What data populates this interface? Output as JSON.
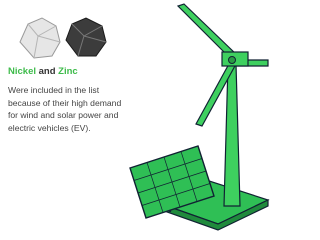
{
  "heading": {
    "parts": [
      "Nickel",
      "and",
      "Zinc"
    ]
  },
  "body": [
    "Were included in the list",
    "because of their high demand",
    "for wind and solar power and",
    "electric vehicles (EV)."
  ]
}
